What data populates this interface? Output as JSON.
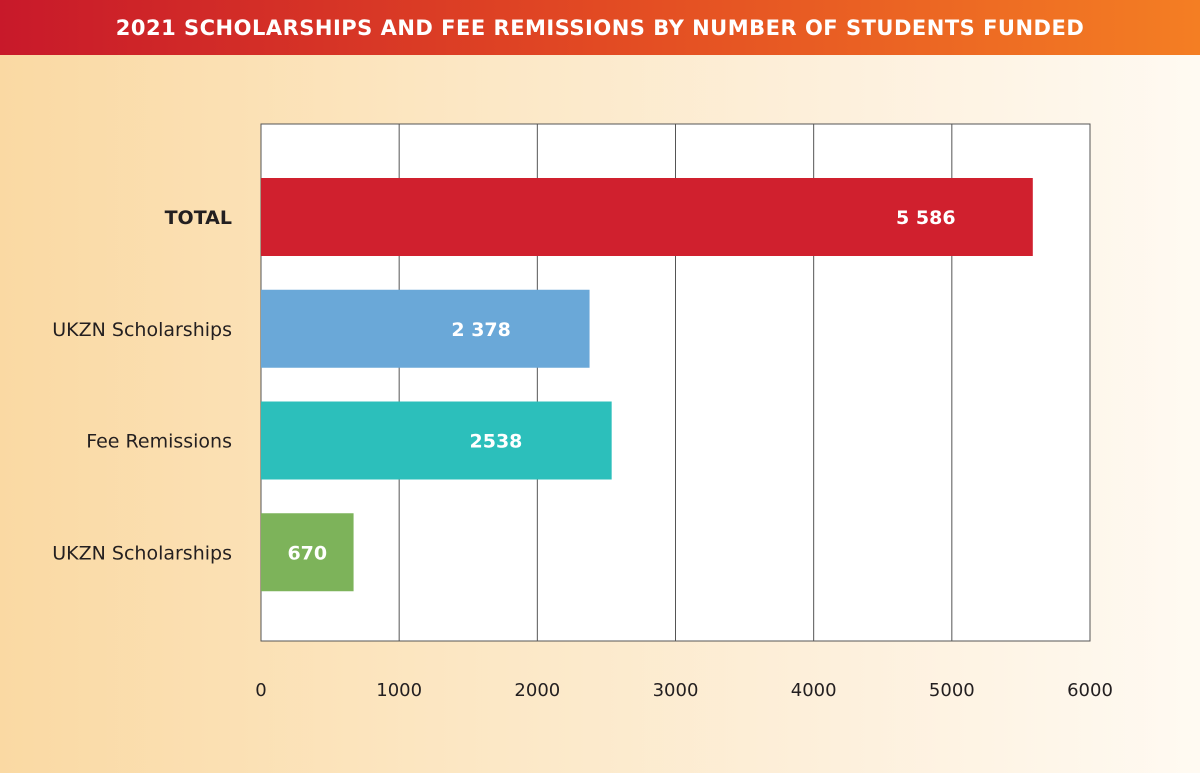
{
  "header": {
    "title": "2021 SCHOLARSHIPS AND FEE REMISSIONS BY NUMBER OF STUDENTS FUNDED"
  },
  "chart_data": {
    "type": "bar",
    "orientation": "horizontal",
    "title": "2021 SCHOLARSHIPS AND FEE REMISSIONS BY NUMBER OF STUDENTS FUNDED",
    "xlabel": "",
    "ylabel": "",
    "xlim": [
      0,
      6000
    ],
    "x_ticks": [
      "0",
      "1000",
      "2000",
      "3000",
      "4000",
      "5000",
      "6000"
    ],
    "grid": true,
    "categories": [
      "TOTAL",
      "UKZN Scholarships",
      "Fee Remissions",
      "UKZN Scholarships"
    ],
    "values": [
      5586,
      2378,
      2538,
      670
    ],
    "value_labels": [
      "5 586",
      "2 378",
      "2538",
      "670"
    ],
    "colors": [
      "#d0202e",
      "#6aa8d8",
      "#2cbfbb",
      "#7db35a"
    ],
    "bold_categories": [
      true,
      false,
      false,
      false
    ]
  }
}
